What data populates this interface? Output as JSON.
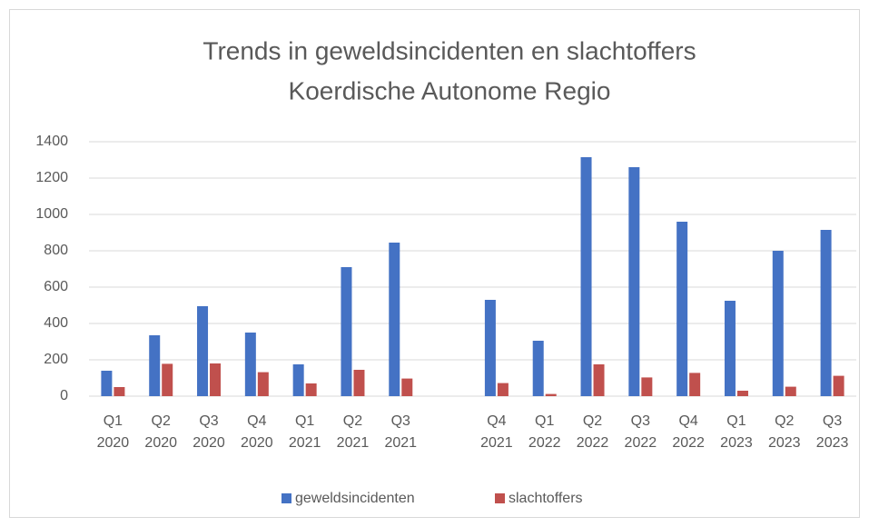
{
  "chart_data": {
    "type": "bar",
    "title": "Trends in geweldsincidenten en slachtoffers",
    "subtitle": "Koerdische Autonome Regio",
    "categories": [
      "Q1 2020",
      "Q2 2020",
      "Q3 2020",
      "Q4 2020",
      "Q1 2021",
      "Q2 2021",
      "Q3 2021",
      null,
      "Q4 2021",
      "Q1 2022",
      "Q2 2022",
      "Q3 2022",
      "Q4 2022",
      "Q1 2023",
      "Q2 2023",
      "Q3 2023"
    ],
    "series": [
      {
        "name": "geweldsincidenten",
        "color": "#4472c4",
        "values": [
          140,
          335,
          495,
          350,
          175,
          710,
          845,
          null,
          530,
          305,
          1315,
          1260,
          960,
          525,
          800,
          915
        ]
      },
      {
        "name": "slachtoffers",
        "color": "#c0504d",
        "values": [
          50,
          178,
          180,
          132,
          70,
          145,
          97,
          null,
          72,
          12,
          175,
          103,
          128,
          30,
          52,
          112
        ]
      }
    ],
    "ylim": [
      0,
      1400
    ],
    "yticks": [
      0,
      200,
      400,
      600,
      800,
      1000,
      1200,
      1400
    ],
    "grid": true,
    "legend": "bottom"
  }
}
